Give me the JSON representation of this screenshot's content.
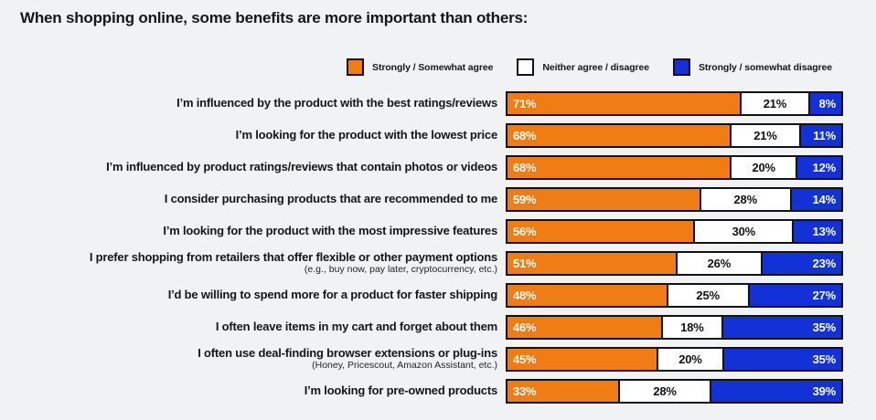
{
  "page": {
    "background_color": "#F1F2F4",
    "border_color": "#121212"
  },
  "title": "When shopping online, some benefits are more important than others:",
  "chart_data": {
    "type": "bar",
    "orientation": "horizontal",
    "stacked": true,
    "unit": "%",
    "title": "When shopping online, some benefits are more important than others:",
    "legend_position": "top-right",
    "grid": false,
    "categories": [
      {
        "label": "I’m influenced by the product with the best ratings/reviews",
        "sublabel": ""
      },
      {
        "label": "I’m looking for the product with the lowest price",
        "sublabel": ""
      },
      {
        "label": "I’m influenced by product ratings/reviews that contain photos or videos",
        "sublabel": ""
      },
      {
        "label": "I consider purchasing products that are recommended to me",
        "sublabel": ""
      },
      {
        "label": "I’m looking for the product with the most impressive features",
        "sublabel": ""
      },
      {
        "label": "I prefer shopping from retailers that offer flexible or other payment options",
        "sublabel": "(e.g., buy now, pay later, cryptocurrency, etc.)"
      },
      {
        "label": "I’d be willing to spend more for a product for faster shipping",
        "sublabel": ""
      },
      {
        "label": "I often leave items in my cart and forget about them",
        "sublabel": ""
      },
      {
        "label": "I often use deal-finding browser extensions or plug-ins",
        "sublabel": "(Honey, Pricescout, Amazon Assistant, etc.)"
      },
      {
        "label": "I’m looking for pre-owned products",
        "sublabel": ""
      }
    ],
    "series": [
      {
        "key": "agree",
        "name": "Strongly / Somewhat agree",
        "color": "#EF7D14",
        "text_color": "#FFFFFF",
        "values": [
          71,
          68,
          68,
          59,
          56,
          51,
          48,
          46,
          45,
          33
        ]
      },
      {
        "key": "neutral",
        "name": "Neither agree / disagree",
        "color": "#FFFFFF",
        "text_color": "#121212",
        "values": [
          21,
          21,
          20,
          28,
          30,
          26,
          25,
          18,
          20,
          28
        ]
      },
      {
        "key": "disagree",
        "name": "Strongly / somewhat disagree",
        "color": "#1232D8",
        "text_color": "#FFFFFF",
        "values": [
          8,
          11,
          12,
          14,
          13,
          23,
          27,
          35,
          35,
          39
        ]
      }
    ]
  }
}
